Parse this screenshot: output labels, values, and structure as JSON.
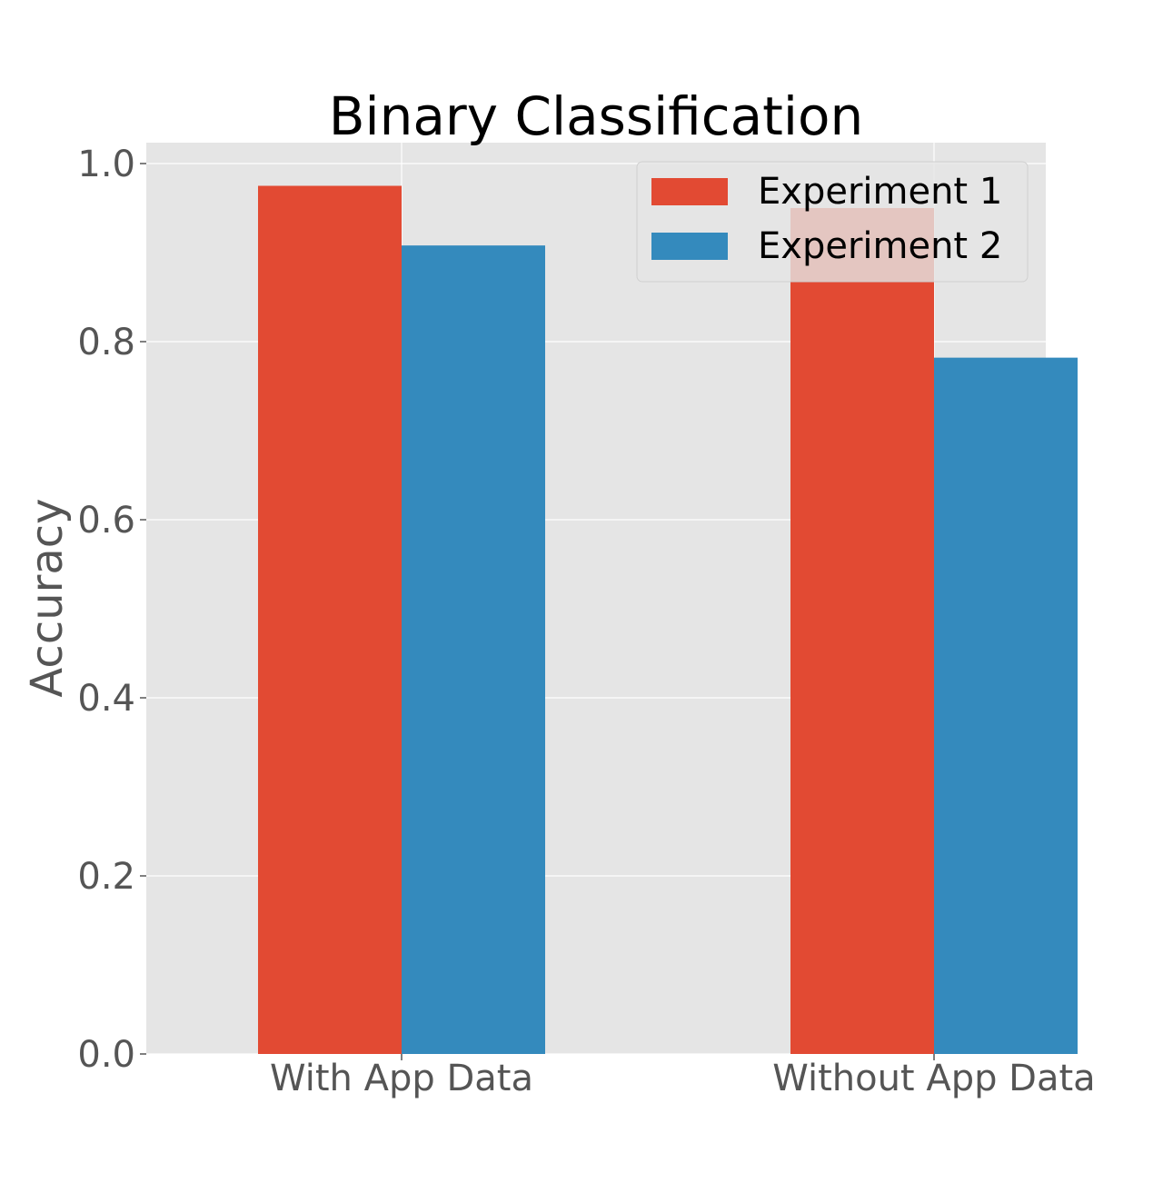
{
  "chart_data": {
    "type": "bar",
    "title": "Binary Classification",
    "xlabel": "",
    "ylabel": "Accuracy",
    "categories": [
      "With App Data",
      "Without App Data"
    ],
    "series": [
      {
        "name": "Experiment 1",
        "values": [
          0.975,
          0.95
        ],
        "color": "#E24A33"
      },
      {
        "name": "Experiment 2",
        "values": [
          0.908,
          0.782
        ],
        "color": "#348ABD"
      }
    ],
    "ylim": [
      0,
      1.0
    ],
    "yticks": [
      "0.0",
      "0.2",
      "0.4",
      "0.6",
      "0.8",
      "1.0"
    ],
    "grid": true,
    "legend_position": "top-right",
    "background_color": "#E5E5E5"
  }
}
